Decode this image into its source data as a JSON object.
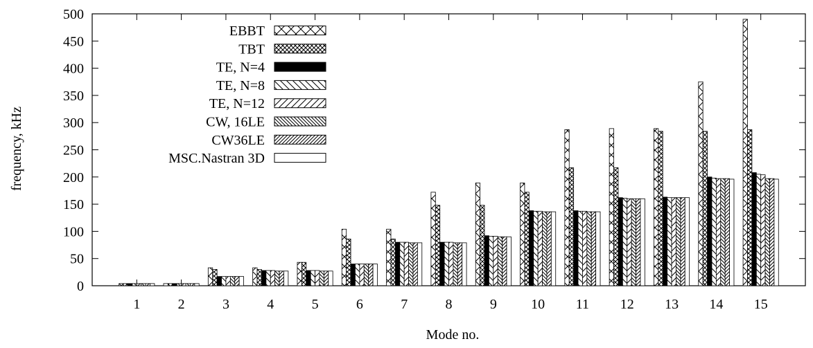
{
  "chart_data": {
    "type": "bar",
    "title": "",
    "xlabel": "Mode no.",
    "ylabel": "frequency, kHz",
    "ylim": [
      0,
      500
    ],
    "yticks": [
      0,
      50,
      100,
      150,
      200,
      250,
      300,
      350,
      400,
      450,
      500
    ],
    "grid": false,
    "legend_position": "top-left",
    "categories": [
      "1",
      "2",
      "3",
      "4",
      "5",
      "6",
      "7",
      "8",
      "9",
      "10",
      "11",
      "12",
      "13",
      "14",
      "15"
    ],
    "series": [
      {
        "name": "EBBT",
        "pattern": "diagcross-wide",
        "values": [
          4,
          4,
          33,
          33,
          43,
          104,
          104,
          172,
          189,
          189,
          287,
          289,
          289,
          375,
          490
        ]
      },
      {
        "name": "TBT",
        "pattern": "diagcross-dense",
        "values": [
          4,
          4,
          30,
          30,
          43,
          86,
          86,
          148,
          148,
          172,
          217,
          217,
          284,
          284,
          287
        ]
      },
      {
        "name": "TE, N=4",
        "pattern": "solid",
        "values": [
          4,
          4,
          17,
          28,
          28,
          40,
          80,
          80,
          92,
          138,
          138,
          162,
          163,
          200,
          208
        ]
      },
      {
        "name": "TE, N=8",
        "pattern": "diag-back",
        "values": [
          4,
          4,
          17,
          28,
          28,
          40,
          80,
          80,
          91,
          137,
          137,
          161,
          162,
          198,
          205
        ]
      },
      {
        "name": "TE, N=12",
        "pattern": "diag-fwd",
        "values": [
          4,
          4,
          17,
          28,
          28,
          40,
          80,
          80,
          91,
          137,
          137,
          160,
          162,
          197,
          204
        ]
      },
      {
        "name": "CW, 16LE",
        "pattern": "diag-back-dense",
        "values": [
          4,
          4,
          17,
          27,
          27,
          40,
          79,
          79,
          90,
          136,
          136,
          160,
          162,
          197,
          197
        ]
      },
      {
        "name": "CW36LE",
        "pattern": "diag-fwd-dense",
        "values": [
          4,
          4,
          17,
          27,
          27,
          40,
          79,
          79,
          90,
          136,
          136,
          160,
          162,
          197,
          197
        ]
      },
      {
        "name": "MSC.Nastran 3D",
        "pattern": "empty",
        "values": [
          4,
          4,
          17,
          27,
          27,
          40,
          79,
          79,
          90,
          136,
          136,
          160,
          162,
          196,
          196
        ]
      }
    ]
  }
}
